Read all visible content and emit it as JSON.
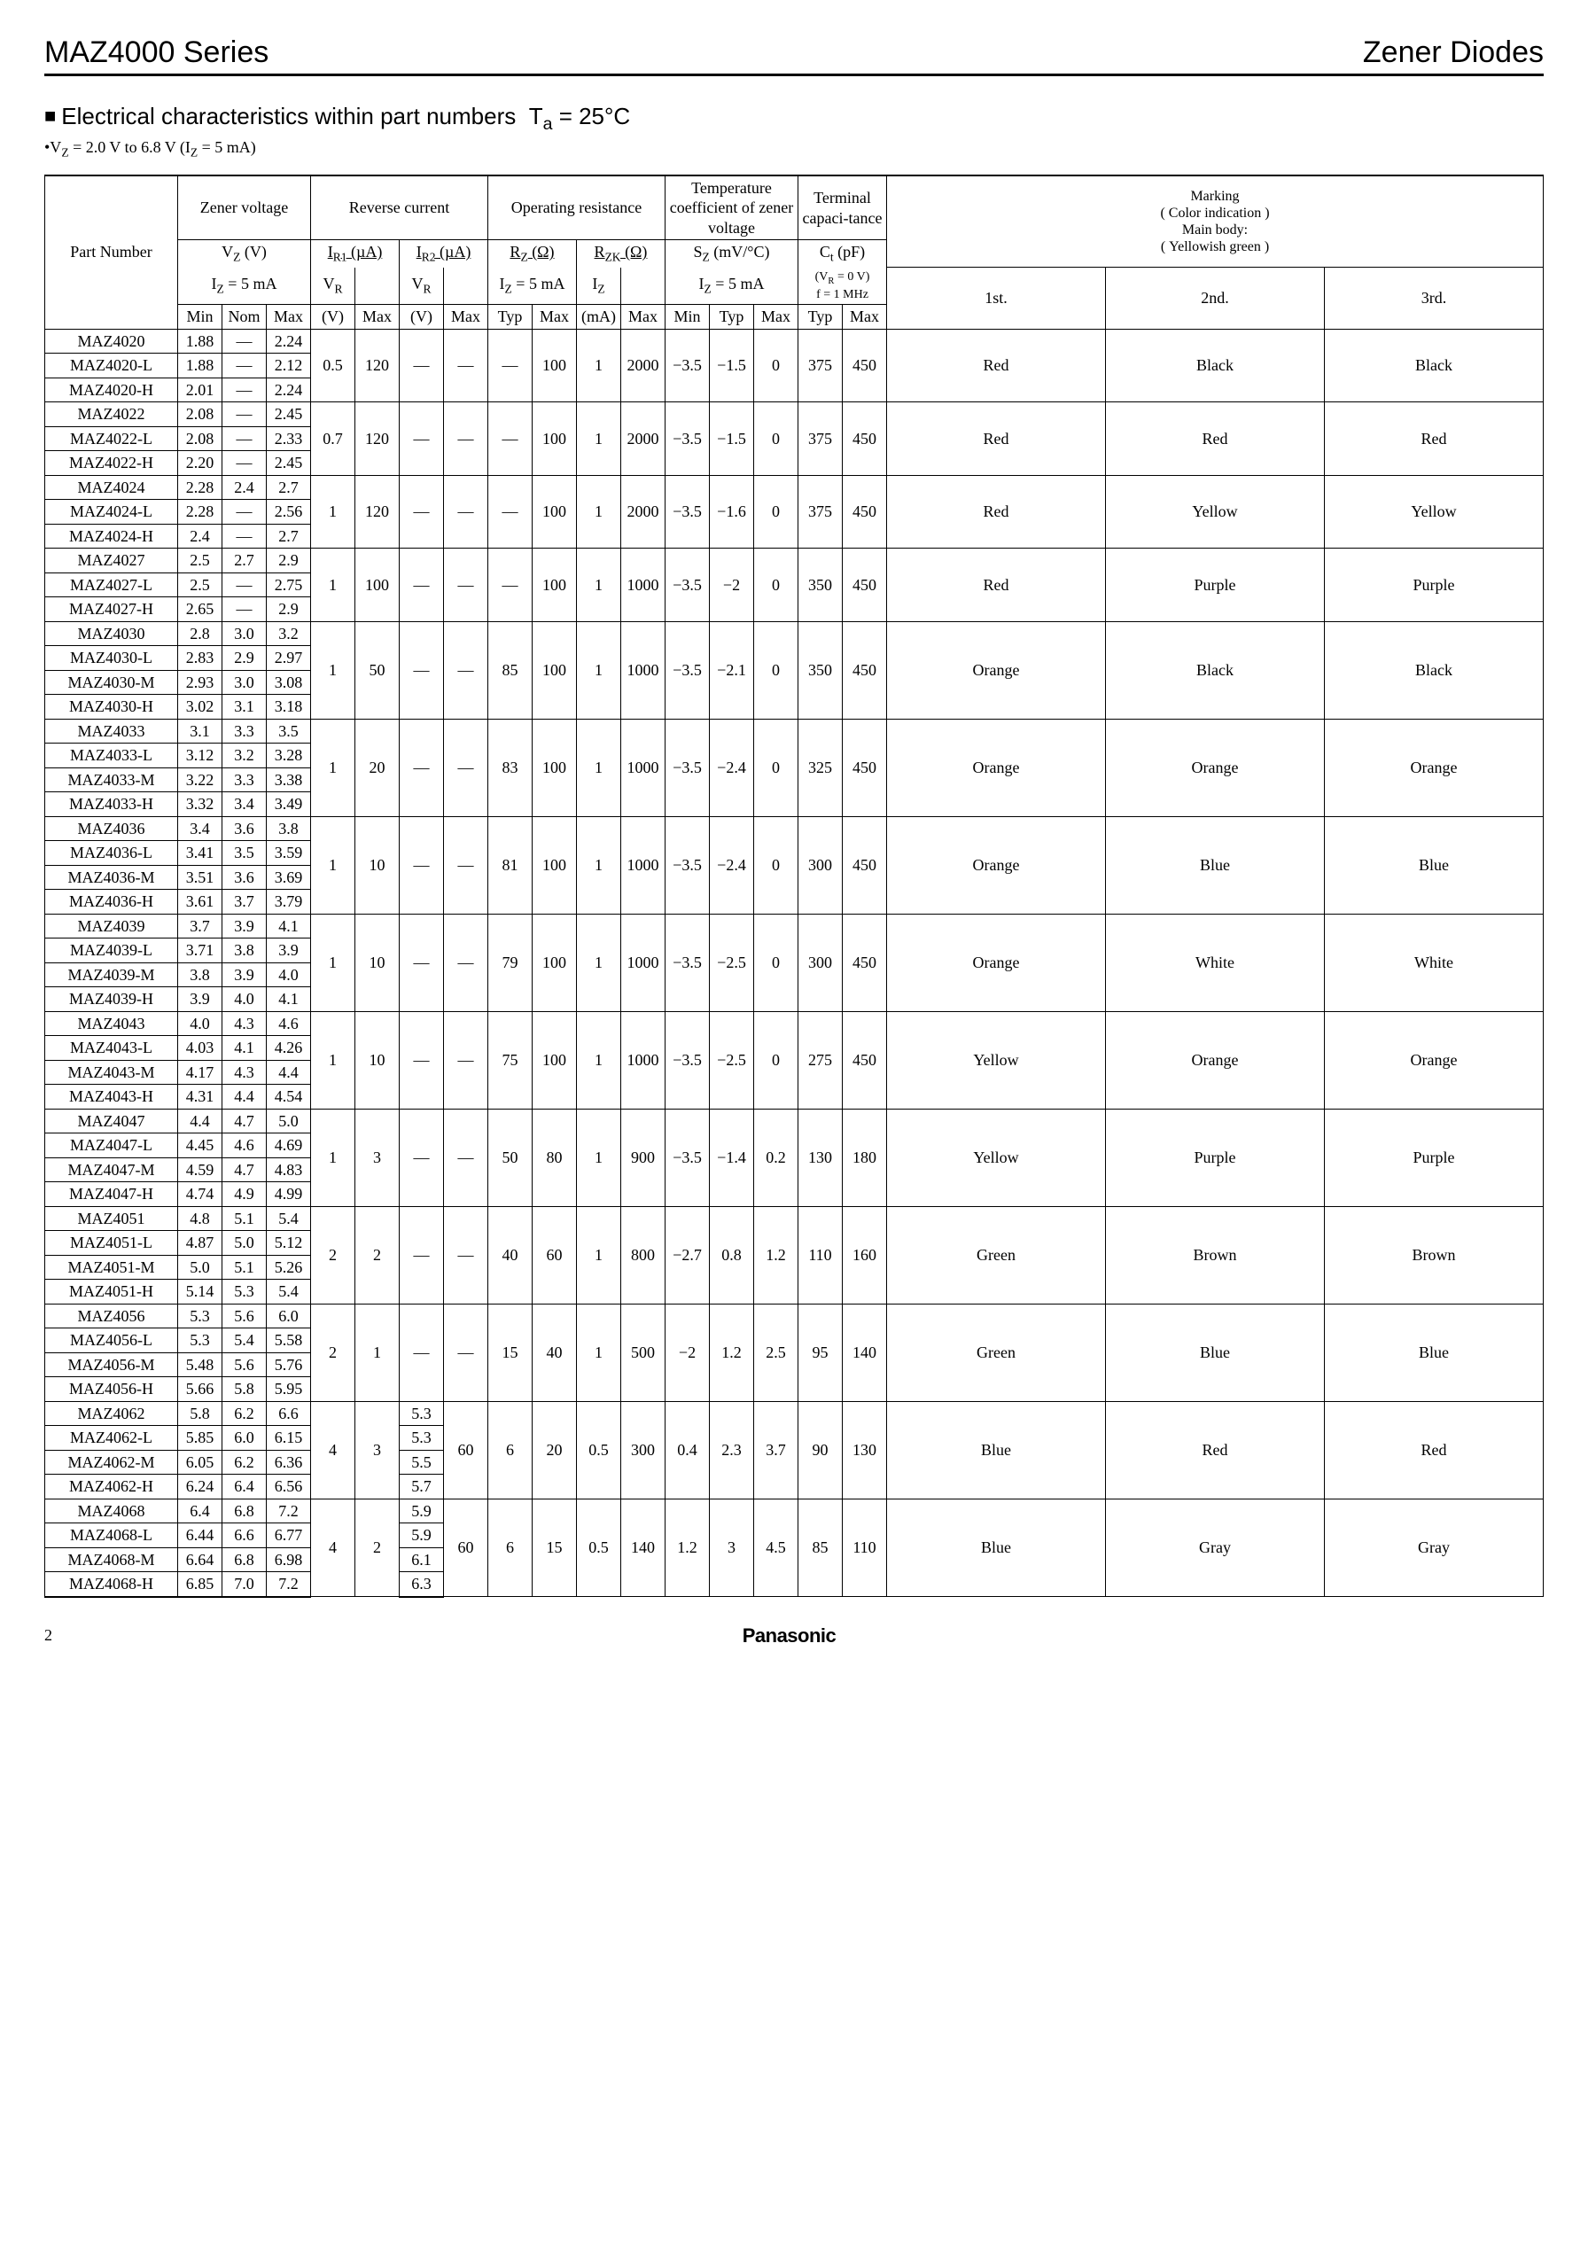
{
  "header": {
    "series": "MAZ4000 Series",
    "category": "Zener Diodes"
  },
  "section": {
    "title_prefix": "Electrical characteristics within part numbers",
    "ta": "T",
    "ta_sub": "a",
    "ta_eq": " = 25°C",
    "vz_line": "•V",
    "vz_sub1": "Z",
    "vz_mid": " = 2.0 V to 6.8 V (I",
    "vz_sub2": "Z",
    "vz_end": " = 5 mA)"
  },
  "table_headers": {
    "part_number": "Part Number",
    "zener_voltage": "Zener voltage",
    "reverse_current": "Reverse current",
    "operating_resistance": "Operating resistance",
    "temp_coef": "Temperature coefficient of zener voltage",
    "term_cap": "Terminal capaci-tance",
    "marking": "Marking",
    "color_ind": "Color indication",
    "main_body": "Main body:",
    "yellowish": "Yellowish green",
    "vz": "V",
    "vz_sub": "Z",
    "vz_unit": " (V)",
    "iz5": "I",
    "iz5_sub": "Z",
    "iz5_eq": " = 5 mA",
    "ir1": "I",
    "ir1_sub": "R1",
    "ir1_unit": " (µA)",
    "ir2": "I",
    "ir2_sub": "R2",
    "ir2_unit": " (µA)",
    "vr": "V",
    "vr_sub": "R",
    "rz": "R",
    "rz_sub": "Z",
    "rz_unit": " (Ω)",
    "rzk": "R",
    "rzk_sub": "ZK",
    "rzk_unit": " (Ω)",
    "iz": "I",
    "iz_sub": "Z",
    "sz": "S",
    "sz_sub": "Z",
    "sz_unit": " (mV/°C)",
    "ct": "C",
    "ct_sub": "t",
    "ct_unit": " (pF)",
    "vr0": "(V",
    "vr0_sub": "R",
    "vr0_end": " = 0 V)",
    "f1mhz": "f = 1 MHz",
    "min": "Min",
    "nom": "Nom",
    "max": "Max",
    "typ": "Typ",
    "v": "(V)",
    "ma": "(mA)",
    "first": "1st.",
    "second": "2nd.",
    "third": "3rd."
  },
  "groups": [
    {
      "rows": [
        {
          "pn": "MAZ4020",
          "vmin": "1.88",
          "vnom": "—",
          "vmax": "2.24"
        },
        {
          "pn": "MAZ4020-L",
          "vmin": "1.88",
          "vnom": "—",
          "vmax": "2.12"
        },
        {
          "pn": "MAZ4020-H",
          "vmin": "2.01",
          "vnom": "—",
          "vmax": "2.24"
        }
      ],
      "ir1_vr": "0.5",
      "ir1_max": "120",
      "ir2_vr": "—",
      "ir2_max": "—",
      "rz_typ": "—",
      "rz_max": "100",
      "rzk_iz": "1",
      "rzk_max": "2000",
      "sz_min": "−3.5",
      "sz_typ": "−1.5",
      "sz_max": "0",
      "ct_typ": "375",
      "ct_max": "450",
      "c1": "Red",
      "c2": "Black",
      "c3": "Black"
    },
    {
      "rows": [
        {
          "pn": "MAZ4022",
          "vmin": "2.08",
          "vnom": "—",
          "vmax": "2.45"
        },
        {
          "pn": "MAZ4022-L",
          "vmin": "2.08",
          "vnom": "—",
          "vmax": "2.33"
        },
        {
          "pn": "MAZ4022-H",
          "vmin": "2.20",
          "vnom": "—",
          "vmax": "2.45"
        }
      ],
      "ir1_vr": "0.7",
      "ir1_max": "120",
      "ir2_vr": "—",
      "ir2_max": "—",
      "rz_typ": "—",
      "rz_max": "100",
      "rzk_iz": "1",
      "rzk_max": "2000",
      "sz_min": "−3.5",
      "sz_typ": "−1.5",
      "sz_max": "0",
      "ct_typ": "375",
      "ct_max": "450",
      "c1": "Red",
      "c2": "Red",
      "c3": "Red"
    },
    {
      "rows": [
        {
          "pn": "MAZ4024",
          "vmin": "2.28",
          "vnom": "2.4",
          "vmax": "2.7"
        },
        {
          "pn": "MAZ4024-L",
          "vmin": "2.28",
          "vnom": "—",
          "vmax": "2.56"
        },
        {
          "pn": "MAZ4024-H",
          "vmin": "2.4",
          "vnom": "—",
          "vmax": "2.7"
        }
      ],
      "ir1_vr": "1",
      "ir1_max": "120",
      "ir2_vr": "—",
      "ir2_max": "—",
      "rz_typ": "—",
      "rz_max": "100",
      "rzk_iz": "1",
      "rzk_max": "2000",
      "sz_min": "−3.5",
      "sz_typ": "−1.6",
      "sz_max": "0",
      "ct_typ": "375",
      "ct_max": "450",
      "c1": "Red",
      "c2": "Yellow",
      "c3": "Yellow"
    },
    {
      "rows": [
        {
          "pn": "MAZ4027",
          "vmin": "2.5",
          "vnom": "2.7",
          "vmax": "2.9"
        },
        {
          "pn": "MAZ4027-L",
          "vmin": "2.5",
          "vnom": "—",
          "vmax": "2.75"
        },
        {
          "pn": "MAZ4027-H",
          "vmin": "2.65",
          "vnom": "—",
          "vmax": "2.9"
        }
      ],
      "ir1_vr": "1",
      "ir1_max": "100",
      "ir2_vr": "—",
      "ir2_max": "—",
      "rz_typ": "—",
      "rz_max": "100",
      "rzk_iz": "1",
      "rzk_max": "1000",
      "sz_min": "−3.5",
      "sz_typ": "−2",
      "sz_max": "0",
      "ct_typ": "350",
      "ct_max": "450",
      "c1": "Red",
      "c2": "Purple",
      "c3": "Purple"
    },
    {
      "rows": [
        {
          "pn": "MAZ4030",
          "vmin": "2.8",
          "vnom": "3.0",
          "vmax": "3.2"
        },
        {
          "pn": "MAZ4030-L",
          "vmin": "2.83",
          "vnom": "2.9",
          "vmax": "2.97"
        },
        {
          "pn": "MAZ4030-M",
          "vmin": "2.93",
          "vnom": "3.0",
          "vmax": "3.08"
        },
        {
          "pn": "MAZ4030-H",
          "vmin": "3.02",
          "vnom": "3.1",
          "vmax": "3.18"
        }
      ],
      "ir1_vr": "1",
      "ir1_max": "50",
      "ir2_vr": "—",
      "ir2_max": "—",
      "rz_typ": "85",
      "rz_max": "100",
      "rzk_iz": "1",
      "rzk_max": "1000",
      "sz_min": "−3.5",
      "sz_typ": "−2.1",
      "sz_max": "0",
      "ct_typ": "350",
      "ct_max": "450",
      "c1": "Orange",
      "c2": "Black",
      "c3": "Black"
    },
    {
      "rows": [
        {
          "pn": "MAZ4033",
          "vmin": "3.1",
          "vnom": "3.3",
          "vmax": "3.5"
        },
        {
          "pn": "MAZ4033-L",
          "vmin": "3.12",
          "vnom": "3.2",
          "vmax": "3.28"
        },
        {
          "pn": "MAZ4033-M",
          "vmin": "3.22",
          "vnom": "3.3",
          "vmax": "3.38"
        },
        {
          "pn": "MAZ4033-H",
          "vmin": "3.32",
          "vnom": "3.4",
          "vmax": "3.49"
        }
      ],
      "ir1_vr": "1",
      "ir1_max": "20",
      "ir2_vr": "—",
      "ir2_max": "—",
      "rz_typ": "83",
      "rz_max": "100",
      "rzk_iz": "1",
      "rzk_max": "1000",
      "sz_min": "−3.5",
      "sz_typ": "−2.4",
      "sz_max": "0",
      "ct_typ": "325",
      "ct_max": "450",
      "c1": "Orange",
      "c2": "Orange",
      "c3": "Orange"
    },
    {
      "rows": [
        {
          "pn": "MAZ4036",
          "vmin": "3.4",
          "vnom": "3.6",
          "vmax": "3.8"
        },
        {
          "pn": "MAZ4036-L",
          "vmin": "3.41",
          "vnom": "3.5",
          "vmax": "3.59"
        },
        {
          "pn": "MAZ4036-M",
          "vmin": "3.51",
          "vnom": "3.6",
          "vmax": "3.69"
        },
        {
          "pn": "MAZ4036-H",
          "vmin": "3.61",
          "vnom": "3.7",
          "vmax": "3.79"
        }
      ],
      "ir1_vr": "1",
      "ir1_max": "10",
      "ir2_vr": "—",
      "ir2_max": "—",
      "rz_typ": "81",
      "rz_max": "100",
      "rzk_iz": "1",
      "rzk_max": "1000",
      "sz_min": "−3.5",
      "sz_typ": "−2.4",
      "sz_max": "0",
      "ct_typ": "300",
      "ct_max": "450",
      "c1": "Orange",
      "c2": "Blue",
      "c3": "Blue"
    },
    {
      "rows": [
        {
          "pn": "MAZ4039",
          "vmin": "3.7",
          "vnom": "3.9",
          "vmax": "4.1"
        },
        {
          "pn": "MAZ4039-L",
          "vmin": "3.71",
          "vnom": "3.8",
          "vmax": "3.9"
        },
        {
          "pn": "MAZ4039-M",
          "vmin": "3.8",
          "vnom": "3.9",
          "vmax": "4.0"
        },
        {
          "pn": "MAZ4039-H",
          "vmin": "3.9",
          "vnom": "4.0",
          "vmax": "4.1"
        }
      ],
      "ir1_vr": "1",
      "ir1_max": "10",
      "ir2_vr": "—",
      "ir2_max": "—",
      "rz_typ": "79",
      "rz_max": "100",
      "rzk_iz": "1",
      "rzk_max": "1000",
      "sz_min": "−3.5",
      "sz_typ": "−2.5",
      "sz_max": "0",
      "ct_typ": "300",
      "ct_max": "450",
      "c1": "Orange",
      "c2": "White",
      "c3": "White"
    },
    {
      "rows": [
        {
          "pn": "MAZ4043",
          "vmin": "4.0",
          "vnom": "4.3",
          "vmax": "4.6"
        },
        {
          "pn": "MAZ4043-L",
          "vmin": "4.03",
          "vnom": "4.1",
          "vmax": "4.26"
        },
        {
          "pn": "MAZ4043-M",
          "vmin": "4.17",
          "vnom": "4.3",
          "vmax": "4.4"
        },
        {
          "pn": "MAZ4043-H",
          "vmin": "4.31",
          "vnom": "4.4",
          "vmax": "4.54"
        }
      ],
      "ir1_vr": "1",
      "ir1_max": "10",
      "ir2_vr": "—",
      "ir2_max": "—",
      "rz_typ": "75",
      "rz_max": "100",
      "rzk_iz": "1",
      "rzk_max": "1000",
      "sz_min": "−3.5",
      "sz_typ": "−2.5",
      "sz_max": "0",
      "ct_typ": "275",
      "ct_max": "450",
      "c1": "Yellow",
      "c2": "Orange",
      "c3": "Orange"
    },
    {
      "rows": [
        {
          "pn": "MAZ4047",
          "vmin": "4.4",
          "vnom": "4.7",
          "vmax": "5.0"
        },
        {
          "pn": "MAZ4047-L",
          "vmin": "4.45",
          "vnom": "4.6",
          "vmax": "4.69"
        },
        {
          "pn": "MAZ4047-M",
          "vmin": "4.59",
          "vnom": "4.7",
          "vmax": "4.83"
        },
        {
          "pn": "MAZ4047-H",
          "vmin": "4.74",
          "vnom": "4.9",
          "vmax": "4.99"
        }
      ],
      "ir1_vr": "1",
      "ir1_max": "3",
      "ir2_vr": "—",
      "ir2_max": "—",
      "rz_typ": "50",
      "rz_max": "80",
      "rzk_iz": "1",
      "rzk_max": "900",
      "sz_min": "−3.5",
      "sz_typ": "−1.4",
      "sz_max": "0.2",
      "ct_typ": "130",
      "ct_max": "180",
      "c1": "Yellow",
      "c2": "Purple",
      "c3": "Purple"
    },
    {
      "rows": [
        {
          "pn": "MAZ4051",
          "vmin": "4.8",
          "vnom": "5.1",
          "vmax": "5.4"
        },
        {
          "pn": "MAZ4051-L",
          "vmin": "4.87",
          "vnom": "5.0",
          "vmax": "5.12"
        },
        {
          "pn": "MAZ4051-M",
          "vmin": "5.0",
          "vnom": "5.1",
          "vmax": "5.26"
        },
        {
          "pn": "MAZ4051-H",
          "vmin": "5.14",
          "vnom": "5.3",
          "vmax": "5.4"
        }
      ],
      "ir1_vr": "2",
      "ir1_max": "2",
      "ir2_vr": "—",
      "ir2_max": "—",
      "rz_typ": "40",
      "rz_max": "60",
      "rzk_iz": "1",
      "rzk_max": "800",
      "sz_min": "−2.7",
      "sz_typ": "0.8",
      "sz_max": "1.2",
      "ct_typ": "110",
      "ct_max": "160",
      "c1": "Green",
      "c2": "Brown",
      "c3": "Brown"
    },
    {
      "rows": [
        {
          "pn": "MAZ4056",
          "vmin": "5.3",
          "vnom": "5.6",
          "vmax": "6.0"
        },
        {
          "pn": "MAZ4056-L",
          "vmin": "5.3",
          "vnom": "5.4",
          "vmax": "5.58"
        },
        {
          "pn": "MAZ4056-M",
          "vmin": "5.48",
          "vnom": "5.6",
          "vmax": "5.76"
        },
        {
          "pn": "MAZ4056-H",
          "vmin": "5.66",
          "vnom": "5.8",
          "vmax": "5.95"
        }
      ],
      "ir1_vr": "2",
      "ir1_max": "1",
      "ir2_vr": "—",
      "ir2_max": "—",
      "rz_typ": "15",
      "rz_max": "40",
      "rzk_iz": "1",
      "rzk_max": "500",
      "sz_min": "−2",
      "sz_typ": "1.2",
      "sz_max": "2.5",
      "ct_typ": "95",
      "ct_max": "140",
      "c1": "Green",
      "c2": "Blue",
      "c3": "Blue"
    },
    {
      "rows": [
        {
          "pn": "MAZ4062",
          "vmin": "5.8",
          "vnom": "6.2",
          "vmax": "6.6",
          "ir2_vr": "5.3"
        },
        {
          "pn": "MAZ4062-L",
          "vmin": "5.85",
          "vnom": "6.0",
          "vmax": "6.15",
          "ir2_vr": "5.3"
        },
        {
          "pn": "MAZ4062-M",
          "vmin": "6.05",
          "vnom": "6.2",
          "vmax": "6.36",
          "ir2_vr": "5.5"
        },
        {
          "pn": "MAZ4062-H",
          "vmin": "6.24",
          "vnom": "6.4",
          "vmax": "6.56",
          "ir2_vr": "5.7"
        }
      ],
      "ir1_vr": "4",
      "ir1_max": "3",
      "ir2_max": "60",
      "rz_typ": "6",
      "rz_max": "20",
      "rzk_iz": "0.5",
      "rzk_max": "300",
      "sz_min": "0.4",
      "sz_typ": "2.3",
      "sz_max": "3.7",
      "ct_typ": "90",
      "ct_max": "130",
      "c1": "Blue",
      "c2": "Red",
      "c3": "Red",
      "per_row_ir2_vr": true
    },
    {
      "rows": [
        {
          "pn": "MAZ4068",
          "vmin": "6.4",
          "vnom": "6.8",
          "vmax": "7.2",
          "ir2_vr": "5.9"
        },
        {
          "pn": "MAZ4068-L",
          "vmin": "6.44",
          "vnom": "6.6",
          "vmax": "6.77",
          "ir2_vr": "5.9"
        },
        {
          "pn": "MAZ4068-M",
          "vmin": "6.64",
          "vnom": "6.8",
          "vmax": "6.98",
          "ir2_vr": "6.1"
        },
        {
          "pn": "MAZ4068-H",
          "vmin": "6.85",
          "vnom": "7.0",
          "vmax": "7.2",
          "ir2_vr": "6.3"
        }
      ],
      "ir1_vr": "4",
      "ir1_max": "2",
      "ir2_max": "60",
      "rz_typ": "6",
      "rz_max": "15",
      "rzk_iz": "0.5",
      "rzk_max": "140",
      "sz_min": "1.2",
      "sz_typ": "3",
      "sz_max": "4.5",
      "ct_typ": "85",
      "ct_max": "110",
      "c1": "Blue",
      "c2": "Gray",
      "c3": "Gray",
      "per_row_ir2_vr": true
    }
  ],
  "footer": {
    "page": "2",
    "brand": "Panasonic"
  }
}
